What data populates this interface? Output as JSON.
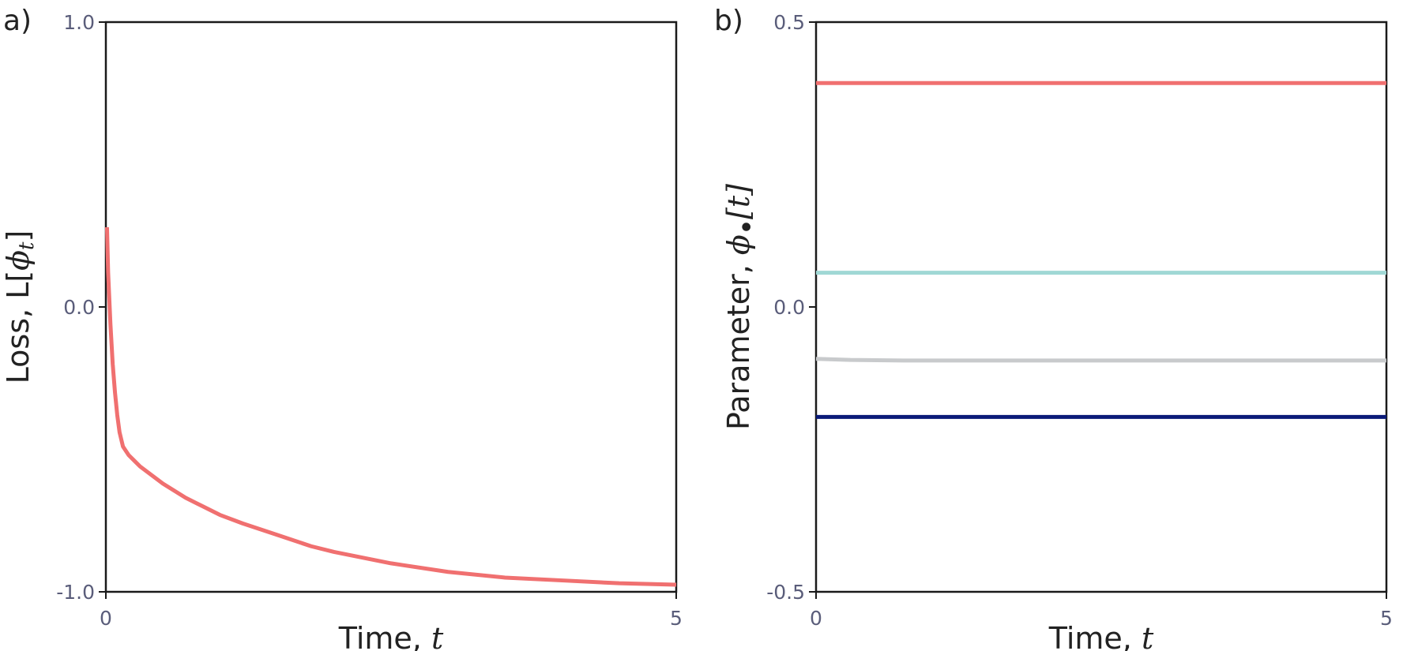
{
  "chart_data": [
    {
      "panel_label": "a)",
      "type": "line",
      "ylabel_prefix": "Loss, L[",
      "ylabel_math": "ϕ",
      "ylabel_sub": "t",
      "ylabel_suffix": "]",
      "xlabel_prefix": "Time, ",
      "xlabel_math": "t",
      "xlim": [
        0,
        5
      ],
      "ylim": [
        -1.0,
        1.0
      ],
      "xticks": [
        "0",
        "5"
      ],
      "yticks": [
        "-1.0",
        "0.0",
        "1.0"
      ],
      "grid": false,
      "series": [
        {
          "color": "#f07070",
          "x": [
            0.01,
            0.02,
            0.04,
            0.06,
            0.08,
            0.1,
            0.12,
            0.15,
            0.2,
            0.25,
            0.3,
            0.4,
            0.5,
            0.6,
            0.7,
            0.8,
            1.0,
            1.2,
            1.5,
            1.8,
            2.0,
            2.5,
            3.0,
            3.5,
            4.0,
            4.5,
            5.0
          ],
          "y": [
            0.28,
            0.12,
            -0.06,
            -0.2,
            -0.3,
            -0.38,
            -0.44,
            -0.49,
            -0.52,
            -0.54,
            -0.56,
            -0.59,
            -0.62,
            -0.645,
            -0.67,
            -0.69,
            -0.73,
            -0.76,
            -0.8,
            -0.84,
            -0.86,
            -0.9,
            -0.93,
            -0.95,
            -0.96,
            -0.97,
            -0.975
          ]
        }
      ]
    },
    {
      "panel_label": "b)",
      "type": "line",
      "ylabel_prefix": "Parameter, ",
      "ylabel_math": "ϕ",
      "ylabel_sub": "•",
      "ylabel_suffix": "[t]",
      "xlabel_prefix": "Time, ",
      "xlabel_math": "t",
      "xlim": [
        0,
        5
      ],
      "ylim": [
        -0.5,
        0.5
      ],
      "xticks": [
        "0",
        "5"
      ],
      "yticks": [
        "-0.5",
        "0.0",
        "0.5"
      ],
      "grid": false,
      "series": [
        {
          "color": "#f07070",
          "x": [
            0,
            5
          ],
          "y": [
            0.393,
            0.393
          ]
        },
        {
          "color": "#a0d8d5",
          "x": [
            0,
            5
          ],
          "y": [
            0.06,
            0.06
          ]
        },
        {
          "color": "#c8cacc",
          "x": [
            0,
            0.3,
            0.8,
            5
          ],
          "y": [
            -0.091,
            -0.093,
            -0.094,
            -0.094
          ]
        },
        {
          "color": "#0a1a78",
          "x": [
            0,
            5
          ],
          "y": [
            -0.193,
            -0.193
          ]
        }
      ]
    }
  ]
}
